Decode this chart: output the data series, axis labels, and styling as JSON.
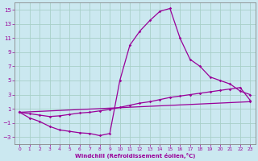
{
  "xlabel": "Windchill (Refroidissement éolien,°C)",
  "bg_color": "#cbe8f0",
  "grid_color": "#a8d0c8",
  "line_color": "#990099",
  "spine_color": "#888888",
  "xlim": [
    -0.5,
    23.5
  ],
  "ylim": [
    -4,
    16
  ],
  "xticks": [
    0,
    1,
    2,
    3,
    4,
    5,
    6,
    7,
    8,
    9,
    10,
    11,
    12,
    13,
    14,
    15,
    16,
    17,
    18,
    19,
    20,
    21,
    22,
    23
  ],
  "yticks": [
    -3,
    -1,
    1,
    3,
    5,
    7,
    9,
    11,
    13,
    15
  ],
  "line1_x": [
    0,
    1,
    2,
    3,
    4,
    5,
    6,
    7,
    8,
    9,
    10,
    11,
    12,
    13,
    14,
    15,
    16,
    17,
    18,
    19,
    20,
    21,
    22,
    23
  ],
  "line1_y": [
    0.5,
    -0.3,
    -0.8,
    -1.5,
    -2.0,
    -2.2,
    -2.4,
    -2.5,
    -2.8,
    -2.5,
    5.0,
    10.0,
    12.0,
    13.5,
    14.8,
    15.2,
    11.0,
    8.0,
    7.0,
    5.5,
    5.0,
    4.5,
    3.5,
    3.0
  ],
  "line2_x": [
    0,
    1,
    2,
    3,
    4,
    5,
    6,
    7,
    8,
    9,
    10,
    11,
    12,
    13,
    14,
    15,
    16,
    17,
    18,
    19,
    20,
    21,
    22,
    23
  ],
  "line2_y": [
    0.5,
    0.3,
    0.1,
    -0.1,
    0.0,
    0.2,
    0.4,
    0.5,
    0.7,
    0.9,
    1.2,
    1.5,
    1.8,
    2.0,
    2.3,
    2.6,
    2.8,
    3.0,
    3.2,
    3.4,
    3.6,
    3.8,
    4.0,
    2.2
  ],
  "line3_x": [
    0,
    23
  ],
  "line3_y": [
    0.5,
    2.0
  ]
}
